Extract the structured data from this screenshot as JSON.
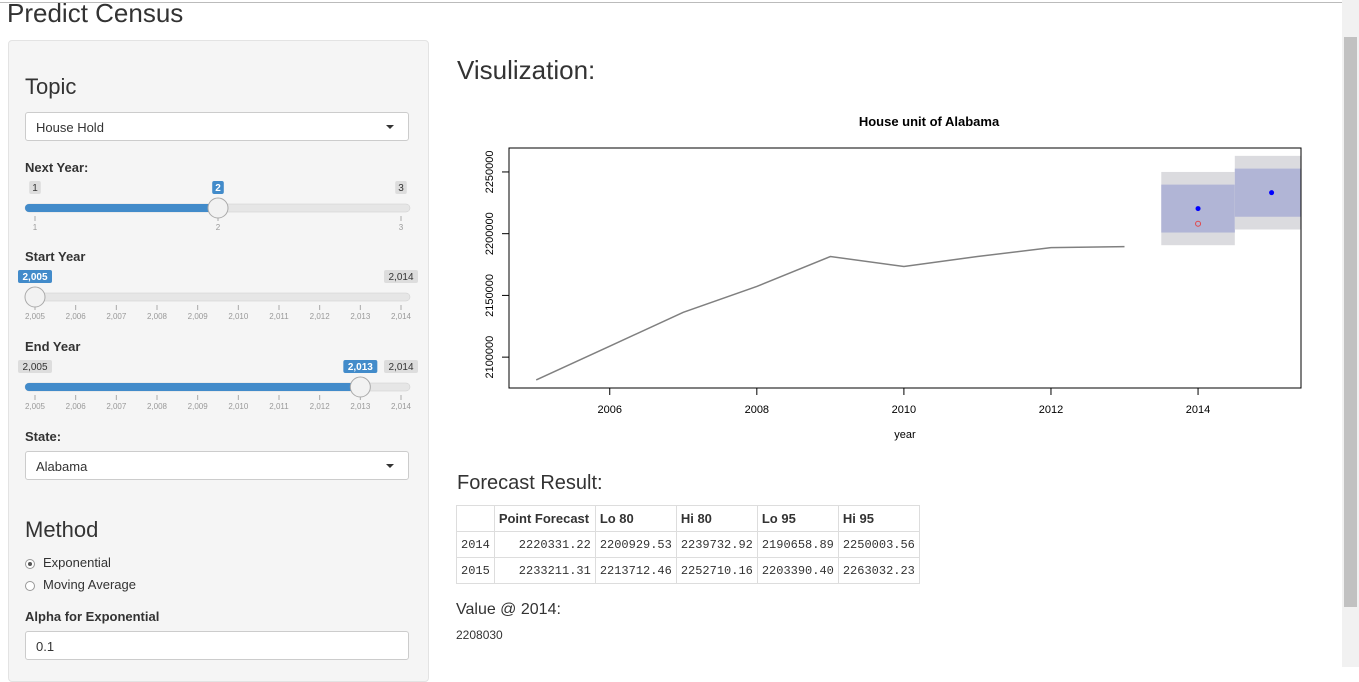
{
  "header": {
    "title": "Predict Census"
  },
  "sidebar": {
    "topic": {
      "label": "Topic",
      "selected": "House Hold"
    },
    "next_year": {
      "label": "Next Year:",
      "range": [
        1,
        3
      ],
      "value": 2,
      "ticks": [
        1,
        2,
        3
      ]
    },
    "start_year": {
      "label": "Start Year",
      "range": [
        {
          "value": 2005,
          "label": "2,005"
        },
        {
          "value": 2014,
          "label": "2,014"
        }
      ],
      "value": {
        "value": 2005,
        "label": "2,005"
      },
      "ticks": [
        {
          "value": 2005,
          "label": "2,005"
        },
        {
          "value": 2006,
          "label": "2,006"
        },
        {
          "value": 2007,
          "label": "2,007"
        },
        {
          "value": 2008,
          "label": "2,008"
        },
        {
          "value": 2009,
          "label": "2,009"
        },
        {
          "value": 2010,
          "label": "2,010"
        },
        {
          "value": 2011,
          "label": "2,011"
        },
        {
          "value": 2012,
          "label": "2,012"
        },
        {
          "value": 2013,
          "label": "2,013"
        },
        {
          "value": 2014,
          "label": "2,014"
        }
      ]
    },
    "end_year": {
      "label": "End Year",
      "range": [
        {
          "value": 2005,
          "label": "2,005"
        },
        {
          "value": 2014,
          "label": "2,014"
        }
      ],
      "value": {
        "value": 2013,
        "label": "2,013"
      },
      "ticks": [
        {
          "value": 2005,
          "label": "2,005"
        },
        {
          "value": 2006,
          "label": "2,006"
        },
        {
          "value": 2007,
          "label": "2,007"
        },
        {
          "value": 2008,
          "label": "2,008"
        },
        {
          "value": 2009,
          "label": "2,009"
        },
        {
          "value": 2010,
          "label": "2,010"
        },
        {
          "value": 2011,
          "label": "2,011"
        },
        {
          "value": 2012,
          "label": "2,012"
        },
        {
          "value": 2013,
          "label": "2,013"
        },
        {
          "value": 2014,
          "label": "2,014"
        }
      ]
    },
    "state": {
      "label": "State:",
      "selected": "Alabama"
    },
    "method": {
      "label": "Method",
      "options": [
        "Exponential",
        "Moving Average"
      ],
      "selected": 0
    },
    "alpha": {
      "label": "Alpha for Exponential",
      "value": 0.1
    }
  },
  "main": {
    "heading": "Visulization:",
    "forecast": {
      "title": "Forecast Result:",
      "columns": [
        "Point Forecast",
        "Lo 80",
        "Hi 80",
        "Lo 95",
        "Hi 95"
      ],
      "rows": [
        {
          "label": 2014,
          "cells": [
            "2220331.22",
            "2200929.53",
            "2239732.92",
            "2190658.89",
            "2250003.56"
          ]
        },
        {
          "label": 2015,
          "cells": [
            "2233211.31",
            "2213712.46",
            "2252710.16",
            "2203390.40",
            "2263032.23"
          ]
        }
      ]
    },
    "value_at": {
      "label": "Value @ 2014:",
      "value": 2208030
    }
  },
  "chart_data": {
    "type": "line",
    "title": "House unit of Alabama",
    "xlabel": "year",
    "x": [
      2005,
      2006,
      2007,
      2008,
      2009,
      2010,
      2011,
      2012,
      2013
    ],
    "values": [
      2081500,
      2108900,
      2136300,
      2157300,
      2181500,
      2173400,
      2181500,
      2188700,
      2189500
    ],
    "color": "#808080",
    "forecast": {
      "x": [
        2014,
        2015
      ],
      "point": [
        2220331.22,
        2233211.31
      ],
      "lo80": [
        2200929.53,
        2213712.46
      ],
      "hi80": [
        2239732.92,
        2252710.16
      ],
      "lo95": [
        2190658.89,
        2203390.4
      ],
      "hi95": [
        2250003.56,
        2263032.23
      ],
      "color": "#0000ff",
      "band80_color": "#b1b5d6",
      "band95_color": "#dbdbdf"
    },
    "actual": {
      "x": [
        2014
      ],
      "values": [
        2208030
      ],
      "color": "#e0474c"
    },
    "xlim": [
      2004.63,
      2015.4
    ],
    "ylim": [
      2075000,
      2269400
    ],
    "xticks": [
      2006,
      2008,
      2010,
      2012,
      2014
    ],
    "yticks": [
      2100000,
      2150000,
      2200000,
      2250000
    ]
  }
}
